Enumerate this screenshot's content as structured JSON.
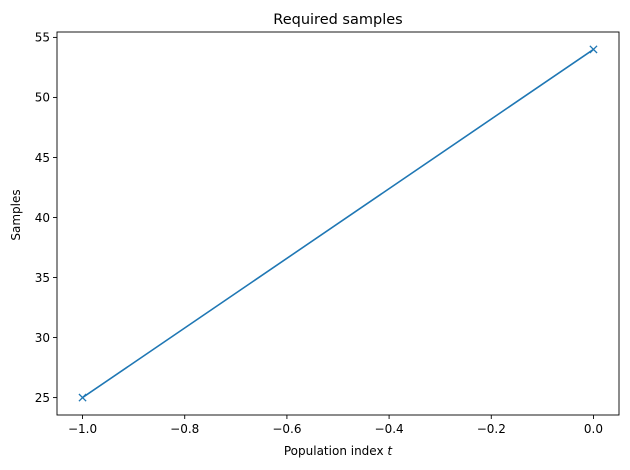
{
  "chart_data": {
    "type": "line",
    "title": "Required samples",
    "xlabel": "Population index",
    "xlabel_var": "t",
    "ylabel": "Samples",
    "xlim": [
      -1.05,
      0.05
    ],
    "ylim": [
      23.55,
      55.45
    ],
    "xticks": [
      -1.0,
      -0.8,
      -0.6,
      -0.4,
      -0.2,
      0.0
    ],
    "xtick_labels": [
      "−1.0",
      "−0.8",
      "−0.6",
      "−0.4",
      "−0.2",
      "0.0"
    ],
    "yticks": [
      25,
      30,
      35,
      40,
      45,
      50,
      55
    ],
    "ytick_labels": [
      "25",
      "30",
      "35",
      "40",
      "45",
      "50",
      "55"
    ],
    "grid": false,
    "series": [
      {
        "x": [
          -1.0,
          0.0
        ],
        "y": [
          25,
          54
        ],
        "color": "#1f77b4",
        "marker": "x"
      }
    ]
  }
}
